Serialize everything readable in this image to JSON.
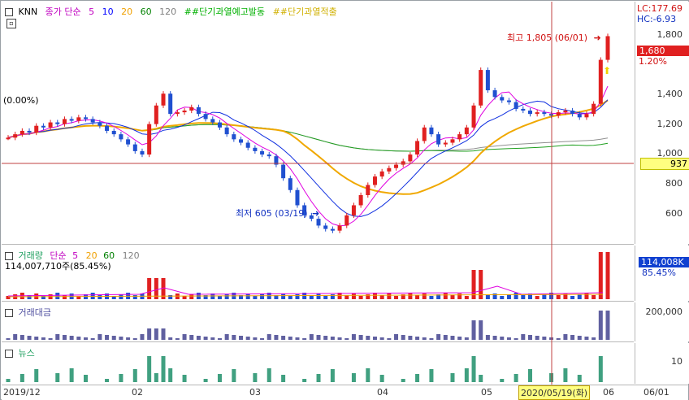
{
  "price_pane": {
    "ticker": "KNN",
    "legend": [
      {
        "label": "종가 단순",
        "color": "#c000c0"
      },
      {
        "label": "5",
        "color": "#c000c0"
      },
      {
        "label": "10",
        "color": "#0000ff"
      },
      {
        "label": "20",
        "color": "#f0a000"
      },
      {
        "label": "60",
        "color": "#008000"
      },
      {
        "label": "120",
        "color": "#808080"
      }
    ],
    "signal1": "##단기과열예고발동",
    "signal1_color": "#00b000",
    "signal2": "##단기과열적출",
    "signal2_color": "#e0c000",
    "left_label": "(0.00%)",
    "high_label": "최고 1,805 (06/01)",
    "low_label": "최저 605 (03/19)",
    "lc": "LC:177.69",
    "hc": "HC:-6.93",
    "yticks": [
      "1,800",
      "1,600",
      "1,400",
      "1,200",
      "1,000",
      "800",
      "600"
    ],
    "current_price": "1,680",
    "current_pct": "1.20%",
    "crosshair_value": "937"
  },
  "volume_pane": {
    "title": "거래량",
    "legend": [
      "단순",
      "5",
      "20",
      "60",
      "120"
    ],
    "legend_colors": [
      "#c000c0",
      "#c000c0",
      "#f0a000",
      "#008000",
      "#808080"
    ],
    "info": "114,007,710주(85.45%)",
    "last_value": "114,008K",
    "last_pct": "85.45%"
  },
  "amount_pane": {
    "title": "거래대금",
    "ytick": "200,000"
  },
  "news_pane": {
    "title": "뉴스",
    "ytick": "10"
  },
  "x_axis": {
    "labels": [
      "2019/12",
      "02",
      "03",
      "04",
      "05",
      "06",
      "06/01"
    ],
    "crosshair_date": "2020/05/19(화)"
  },
  "colors": {
    "up": "#e02020",
    "down": "#2050d0",
    "ma5": "#e000e0",
    "ma10": "#1030e0",
    "ma20": "#f0a800",
    "ma60": "#20a020",
    "ma120": "#909090",
    "amount_bar": "#6060a0",
    "news_bar": "#40a080",
    "crosshair": "#c04040"
  }
}
